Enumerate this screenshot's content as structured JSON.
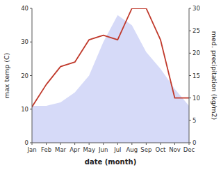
{
  "chart_data": {
    "type": "area",
    "categories": [
      "Jan",
      "Feb",
      "Mar",
      "Apr",
      "May",
      "Jun",
      "Jul",
      "Aug",
      "Sep",
      "Oct",
      "Nov",
      "Dec"
    ],
    "xlabel": "date (month)",
    "ylabel": "max temp (C)",
    "y2label": "med. precipitation (kg/m2)",
    "series": [
      {
        "type": "area",
        "color": "#c8cef5",
        "values": [
          11.0,
          11.0,
          12.0,
          15.0,
          20.0,
          30.0,
          38.0,
          35.0,
          27.0,
          22.0,
          16.0,
          11.0
        ]
      },
      {
        "type": "line",
        "axis": "y2",
        "color": "#c0392b",
        "values": [
          8.0,
          13.0,
          17.0,
          18.0,
          23.0,
          24.0,
          23.0,
          30.0,
          30.0,
          23.0,
          10.0,
          10.0
        ]
      }
    ],
    "ylim": [
      0,
      40
    ],
    "yticks": [
      0,
      10,
      20,
      30,
      40
    ],
    "y2lim": [
      0,
      30
    ],
    "y2ticks": [
      0,
      5,
      10,
      15,
      20,
      25,
      30
    ],
    "grid": false
  }
}
